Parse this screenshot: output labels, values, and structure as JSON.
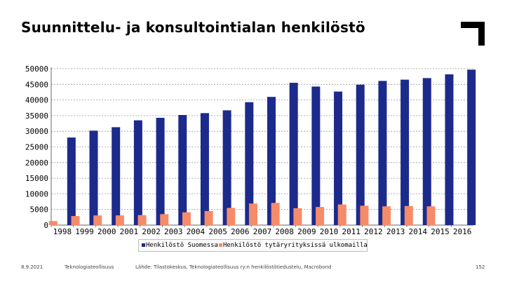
{
  "header": {
    "title": "Suunnittelu- ja konsultointialan henkilöstö"
  },
  "chart_data": {
    "type": "bar",
    "title": "",
    "xlabel": "",
    "ylabel": "",
    "ylim": [
      0,
      50000
    ],
    "yticks": [
      0,
      5000,
      10000,
      15000,
      20000,
      25000,
      30000,
      35000,
      40000,
      45000,
      50000
    ],
    "grid": true,
    "legend_position": "bottom",
    "categories": [
      "1998",
      "1999",
      "2000",
      "2001",
      "2002",
      "2003",
      "2004",
      "2005",
      "2006",
      "2007",
      "2008",
      "2009",
      "2010",
      "2011",
      "2012",
      "2013",
      "2014",
      "2015",
      "2016"
    ],
    "series": [
      {
        "name": "Henkilöstö Suomessa",
        "color": "#1c2a8c",
        "values": [
          28000,
          30200,
          31300,
          33500,
          34300,
          35200,
          35800,
          36700,
          39300,
          41000,
          45500,
          44300,
          42700,
          44900,
          46100,
          46500,
          47000,
          48200,
          49700
        ]
      },
      {
        "name": "Henkilöstö tytäryrityksissä ulkomailla",
        "color": "#f58b69",
        "values": [
          1300,
          2900,
          3100,
          3100,
          3200,
          3500,
          4100,
          4500,
          5500,
          6900,
          7100,
          5400,
          5800,
          6600,
          6200,
          6000,
          6100,
          6000,
          0
        ]
      }
    ]
  },
  "legend": {
    "items": [
      {
        "label": "Henkilöstö Suomessa",
        "color": "#1c2a8c"
      },
      {
        "label": "Henkilöstö tytäryrityksissä ulkomailla",
        "color": "#f58b69"
      }
    ]
  },
  "footer": {
    "date": "8.9.2021",
    "org": "Teknologiateollisuus",
    "source": "Lähde: Tilastokeskus, Teknologiateollisuus ry:n henkilöstötiedustelu, Macrobond",
    "page": "152"
  }
}
